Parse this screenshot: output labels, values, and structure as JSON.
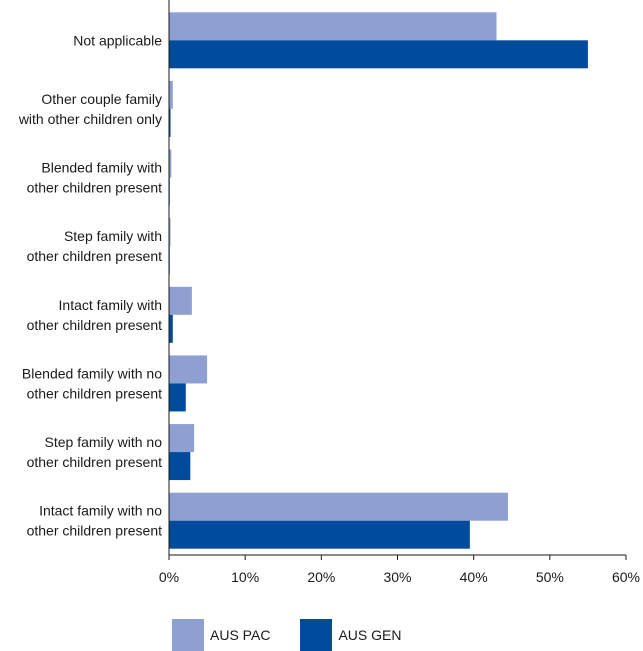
{
  "chart_data": {
    "type": "bar",
    "orientation": "horizontal",
    "categories": [
      [
        "Not applicable"
      ],
      [
        "Other couple family",
        "with other children only"
      ],
      [
        "Blended family with",
        "other children present"
      ],
      [
        "Step family with",
        "other children present"
      ],
      [
        "Intact family with",
        "other children present"
      ],
      [
        "Blended family with no",
        "other children present"
      ],
      [
        "Step family with no",
        "other children present"
      ],
      [
        "Intact family with no",
        "other children present"
      ]
    ],
    "series": [
      {
        "name": "AUS PAC",
        "color": "#8e9fd1",
        "values": [
          43.0,
          0.5,
          0.3,
          0.2,
          3.0,
          5.0,
          3.3,
          44.5
        ]
      },
      {
        "name": "AUS GEN",
        "color": "#004b9b",
        "values": [
          55.0,
          0.2,
          0.1,
          0.1,
          0.5,
          2.2,
          2.8,
          39.5
        ]
      }
    ],
    "xlim": [
      0,
      60
    ],
    "x_ticks": [
      "0%",
      "10%",
      "20%",
      "30%",
      "40%",
      "50%",
      "60%"
    ],
    "x_tick_values": [
      0,
      10,
      20,
      30,
      40,
      50,
      60
    ],
    "title": "",
    "xlabel": "",
    "ylabel": "",
    "grid": false,
    "legend_position": "bottom-left"
  }
}
